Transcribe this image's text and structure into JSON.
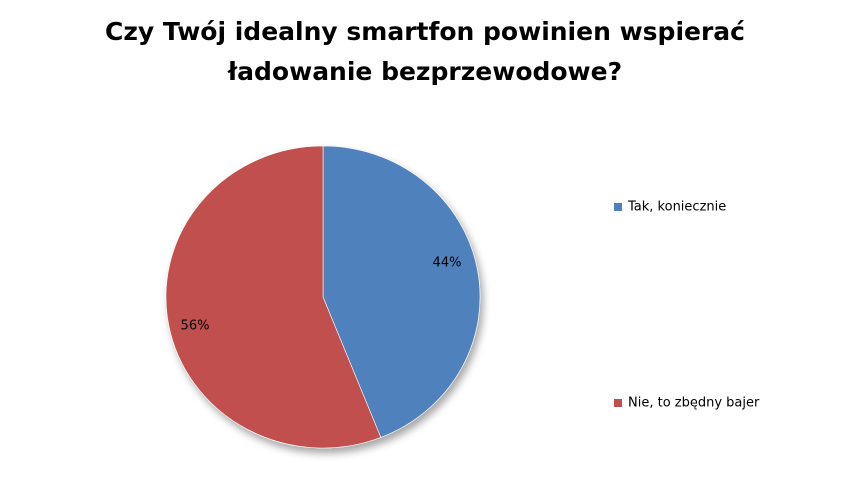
{
  "chart_data": {
    "type": "pie",
    "title_lines": [
      "Czy Twój idealny smartfon powinien wspierać",
      "ładowanie bezprzewodowe?"
    ],
    "series": [
      {
        "name": "Tak, koniecznie",
        "value": 44,
        "label": "44%",
        "color": "#4f81bd"
      },
      {
        "name": "Nie, to zbędny bajer",
        "value": 56,
        "label": "56%",
        "color": "#c0504d"
      }
    ],
    "legend_position": "right"
  }
}
